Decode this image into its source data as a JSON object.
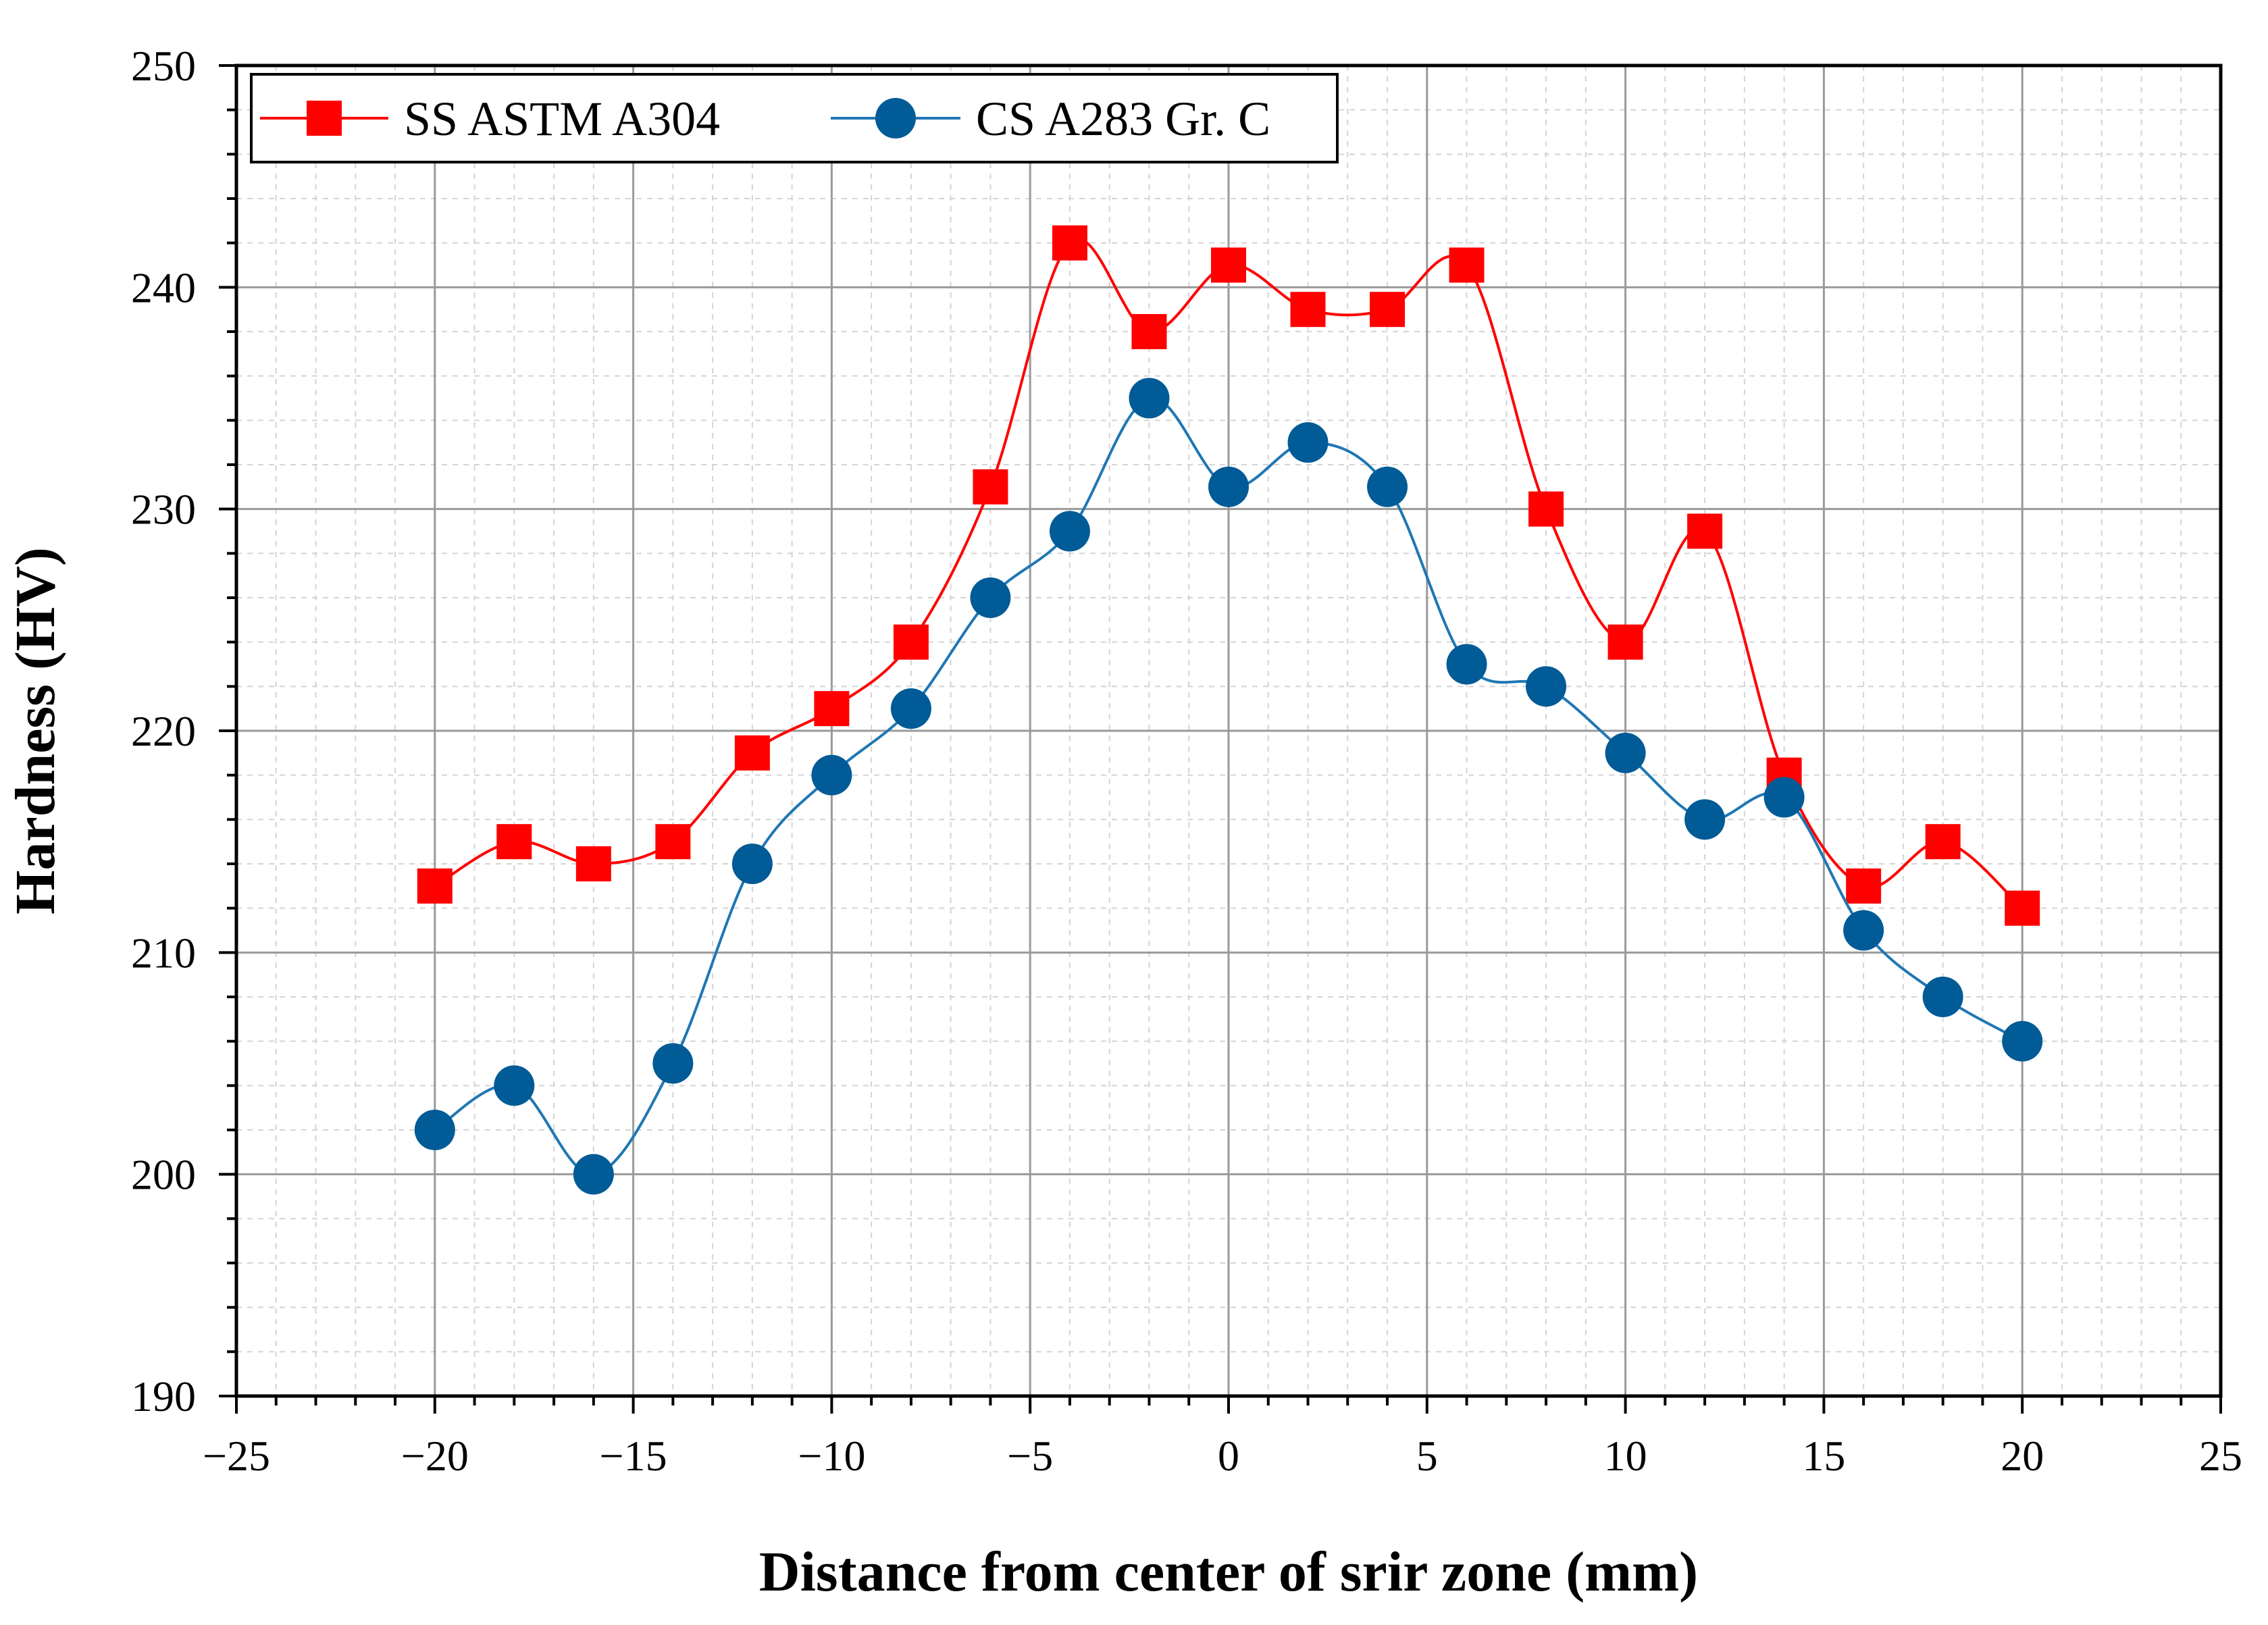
{
  "chart_data": {
    "type": "line",
    "title": "",
    "xlabel": "Distance from center of srir zone (mm)",
    "ylabel": "Hardness (HV)",
    "xlim": [
      -25,
      25
    ],
    "ylim": [
      190,
      250
    ],
    "xticks": [
      -25,
      -20,
      -15,
      -10,
      -5,
      0,
      5,
      10,
      15,
      20,
      25
    ],
    "xtick_labels": [
      "−25",
      "−20",
      "−15",
      "−10",
      "−5",
      "0",
      "5",
      "10",
      "15",
      "20",
      "25"
    ],
    "yticks": [
      190,
      200,
      210,
      220,
      230,
      240,
      250
    ],
    "ytick_labels": [
      "190",
      "200",
      "210",
      "220",
      "230",
      "240",
      "250"
    ],
    "grid": true,
    "legend_position": "top-left",
    "x": [
      -20,
      -18,
      -16,
      -14,
      -12,
      -10,
      -8,
      -6,
      -4,
      -2,
      0,
      2,
      4,
      6,
      8,
      10,
      12,
      14,
      16,
      18,
      20
    ],
    "series": [
      {
        "name": "SS ASTM A304",
        "color": "#ff0000",
        "marker_color": "#ff0000",
        "marker": "square",
        "values": [
          213,
          215,
          214,
          215,
          219,
          221,
          224,
          231,
          242,
          238,
          241,
          239,
          239,
          241,
          230,
          224,
          229,
          218,
          213,
          215,
          212
        ]
      },
      {
        "name": "CS A283 Gr. C",
        "color": "#1f77b4",
        "marker_color": "#005b96",
        "marker": "circle",
        "values": [
          202,
          204,
          200,
          205,
          214,
          218,
          221,
          226,
          229,
          235,
          231,
          233,
          231,
          223,
          222,
          219,
          216,
          217,
          211,
          208,
          206
        ]
      }
    ]
  }
}
